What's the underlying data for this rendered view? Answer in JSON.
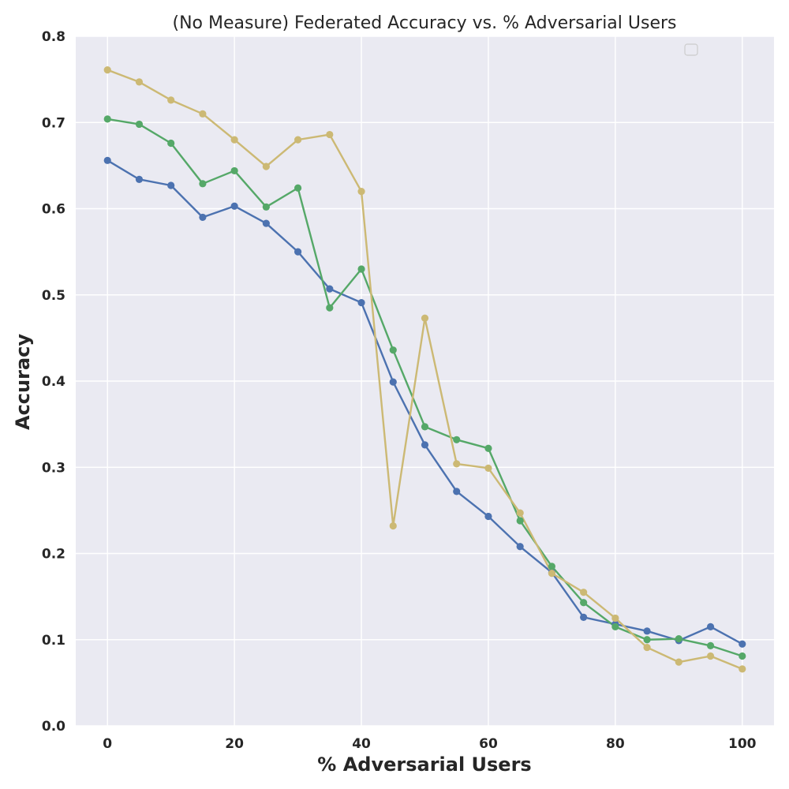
{
  "chart_data": {
    "type": "line",
    "title": "(No Measure) Federated Accuracy vs. % Adversarial Users",
    "xlabel": "% Adversarial Users",
    "ylabel": "Accuracy",
    "xlim": [
      -5,
      105
    ],
    "ylim": [
      0.0,
      0.8
    ],
    "xticks": [
      0,
      20,
      40,
      60,
      80,
      100
    ],
    "xtick_labels": [
      "0",
      "20",
      "40",
      "60",
      "80",
      "100"
    ],
    "yticks": [
      0.0,
      0.1,
      0.2,
      0.3,
      0.4,
      0.5,
      0.6,
      0.7,
      0.8
    ],
    "ytick_labels": [
      "0.0",
      "0.1",
      "0.2",
      "0.3",
      "0.4",
      "0.5",
      "0.6",
      "0.7",
      "0.8"
    ],
    "grid": true,
    "legend": "top-right (empty)",
    "background": "#eaeaf2",
    "x": [
      0,
      5,
      10,
      15,
      20,
      25,
      30,
      35,
      40,
      45,
      50,
      55,
      60,
      65,
      70,
      75,
      80,
      85,
      90,
      95,
      100
    ],
    "series": [
      {
        "color": "#4c72b0",
        "values": [
          0.656,
          0.634,
          0.627,
          0.59,
          0.603,
          0.583,
          0.55,
          0.507,
          0.491,
          0.399,
          0.326,
          0.272,
          0.243,
          0.208,
          0.178,
          0.126,
          0.118,
          0.11,
          0.099,
          0.115,
          0.095
        ]
      },
      {
        "color": "#55a868",
        "values": [
          0.704,
          0.698,
          0.676,
          0.629,
          0.644,
          0.602,
          0.624,
          0.485,
          0.53,
          0.436,
          0.347,
          0.332,
          0.322,
          0.238,
          0.185,
          0.143,
          0.115,
          0.1,
          0.101,
          0.093,
          0.081
        ]
      },
      {
        "color": "#ccb974",
        "values": [
          0.761,
          0.747,
          0.726,
          0.71,
          0.68,
          0.649,
          0.68,
          0.686,
          0.62,
          0.232,
          0.473,
          0.304,
          0.299,
          0.247,
          0.177,
          0.155,
          0.125,
          0.091,
          0.074,
          0.081,
          0.066
        ]
      }
    ]
  }
}
